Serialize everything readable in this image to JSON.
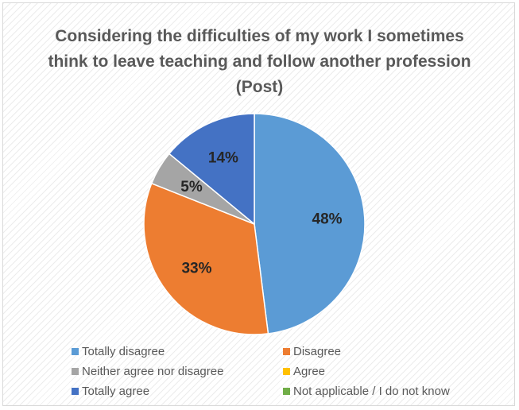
{
  "chart_data": {
    "type": "pie",
    "title": "Considering the difficulties of my work I sometimes think to leave teaching and follow another profession (Post)",
    "categories": [
      "Totally disagree",
      "Disagree",
      "Neither agree nor disagree",
      "Agree",
      "Totally agree",
      "Not applicable / I do not know"
    ],
    "values": [
      48,
      33,
      5,
      0,
      14,
      0
    ],
    "data_labels": [
      "48%",
      "33%",
      "5%",
      "",
      "14%",
      ""
    ],
    "colors": [
      "#5B9BD5",
      "#ED7D31",
      "#A5A5A5",
      "#FFC000",
      "#4472C4",
      "#70AD47"
    ],
    "legend_position": "bottom"
  }
}
